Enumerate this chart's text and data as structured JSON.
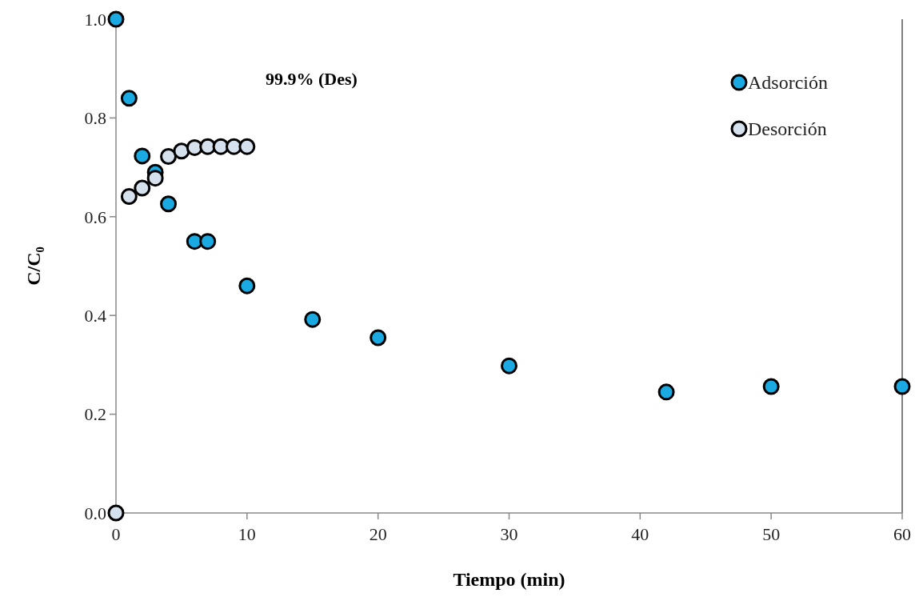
{
  "chart_data": {
    "type": "scatter",
    "xlabel": "Tiempo (min)",
    "ylabel": "C/C₀",
    "annotations": [
      "99.9% (Des)"
    ],
    "xlim": [
      0,
      60
    ],
    "xticks": [
      0,
      10,
      20,
      30,
      40,
      50,
      60
    ],
    "ylim": [
      0,
      1
    ],
    "yticks": [
      {
        "value": 0,
        "label": "0.0"
      },
      {
        "value": 0.2,
        "label": "0.2"
      },
      {
        "value": 0.4,
        "label": "0.4"
      },
      {
        "value": 0.6,
        "label": "0.6"
      },
      {
        "value": 0.8,
        "label": "0.8"
      },
      {
        "value": 1,
        "label": "1.0"
      }
    ],
    "legend": "top right",
    "marker": "circle",
    "grid": false,
    "series": [
      {
        "name": "Adsorción",
        "color": "#1aa9e0",
        "x": [
          0,
          1,
          2,
          3,
          4,
          6,
          7,
          10,
          15,
          20,
          30,
          42,
          50,
          60
        ],
        "values": [
          1.0,
          0.84,
          0.723,
          0.69,
          0.626,
          0.55,
          0.55,
          0.46,
          0.392,
          0.355,
          0.298,
          0.245,
          0.256,
          0.256
        ]
      },
      {
        "name": "Desorción",
        "color": "#d6e1ee",
        "x": [
          0,
          1,
          2,
          3,
          4,
          5,
          6,
          7,
          8,
          9,
          10
        ],
        "values": [
          0,
          0.641,
          0.658,
          0.678,
          0.722,
          0.733,
          0.74,
          0.742,
          0.742,
          0.742,
          0.742
        ]
      }
    ]
  }
}
